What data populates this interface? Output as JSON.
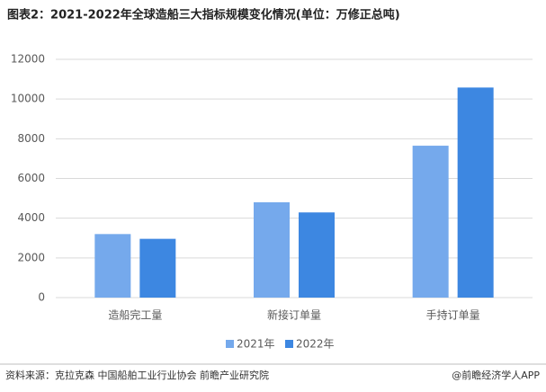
{
  "chart_data": {
    "type": "bar",
    "title": "图表2：2021-2022年全球造船三大指标规模变化情况(单位：万修正总吨)",
    "categories": [
      "造船完工量",
      "新接订单量",
      "手持订单量"
    ],
    "series": [
      {
        "name": "2021年",
        "color": "#75a9ec",
        "values": [
          3200,
          4800,
          7650
        ]
      },
      {
        "name": "2022年",
        "color": "#3d87e1",
        "values": [
          2960,
          4290,
          10580
        ]
      }
    ],
    "ylim": [
      0,
      12000
    ],
    "yticks": [
      0,
      2000,
      4000,
      6000,
      8000,
      10000,
      12000
    ],
    "grid": true,
    "source": "资料来源：克拉克森 中国船舶工业行业协会 前瞻产业研究院",
    "credit": "@前瞻经济学人APP"
  }
}
